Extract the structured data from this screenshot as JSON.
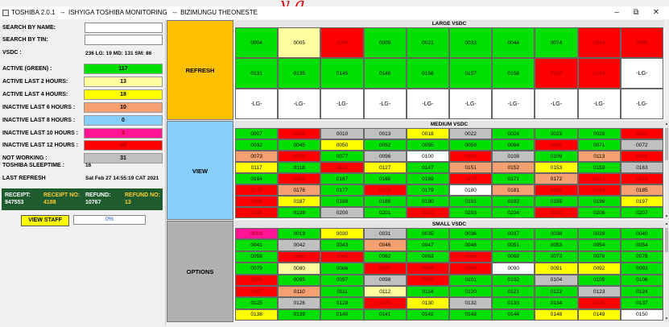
{
  "window": {
    "title": "TOSHIBA 2.0.1   --  ISHYIGA TOSHIBA MONITORING   --  BIZIMUNGU THEONESTE",
    "decoration_text": "y g"
  },
  "left": {
    "search_name_label": "SEARCH BY NAME:",
    "search_tin_label": "SEARCH BY TIN:",
    "vsdc_label": "VSDC :",
    "vsdc_text": "236  LG: 19  MD: 131  SM: 86",
    "stats": [
      {
        "label": "ACTIVE (GREEN) :",
        "value": "117",
        "color": "#00e000"
      },
      {
        "label": "ACTIVE LAST 2 HOURS:",
        "value": "13",
        "color": "#ffffa0"
      },
      {
        "label": "ACTIVE LAST 4 HOURS:",
        "value": "18",
        "color": "#ffff00"
      },
      {
        "label": "INACTIVE LAST 6 HOURS :",
        "value": "10",
        "color": "#f4a070"
      },
      {
        "label": "INACTIVE LAST 8 HOURS :",
        "value": "0",
        "color": "#87cefa"
      },
      {
        "label": "INACTIVE LAST 10 HOURS :",
        "value": "3",
        "color": "#ff1493"
      },
      {
        "label": "INACTIVE LAST 12 HOURS :",
        "value": "40",
        "color": "#ff0000"
      },
      {
        "label": "NOT WORKING :",
        "value": "31",
        "color": "#c0c0c0"
      }
    ],
    "sleeptime_label": "TOSHIBA SLEEPTIME :",
    "sleeptime_value": "16",
    "last_refresh_label": "LAST REFRESH",
    "last_refresh_value": "Sat Feb 27 14:55:19 CAT 2021",
    "receipt_label": "RECEIPT:",
    "receipt_value": "947553",
    "receipt_no_label": "RECEIPT NO:",
    "receipt_no_value": "4188",
    "refund_label": "REFUND:",
    "refund_value": "10767",
    "refund_no_label": "REFUND NO:",
    "refund_no_value": "13",
    "view_staff": "VIEW STAFF",
    "progress": "0%"
  },
  "buttons": {
    "refresh": "REFRESH",
    "view": "VIEW",
    "options": "OPTIONS"
  },
  "colors": {
    "G": "#00e000",
    "LY": "#ffffa0",
    "Y": "#ffff00",
    "S": "#f4a070",
    "R": "#ff0000",
    "P": "#ff1493",
    "GR": "#c0c0c0",
    "W": "#ffffff",
    "GRAY": "#c0c0c0"
  },
  "large": {
    "title": "LARGE VSDC",
    "cells": [
      [
        "0004",
        "G"
      ],
      [
        "0005",
        "LY"
      ],
      [
        "0006",
        "R"
      ],
      [
        "0009",
        "G"
      ],
      [
        "0021",
        "G"
      ],
      [
        "0033",
        "G"
      ],
      [
        "0044",
        "G"
      ],
      [
        "0074",
        "G"
      ],
      [
        "0084",
        "R"
      ],
      [
        "0085",
        "R"
      ],
      [
        "0131",
        "G"
      ],
      [
        "0135",
        "G"
      ],
      [
        "0145",
        "G"
      ],
      [
        "0146",
        "G"
      ],
      [
        "0156",
        "G"
      ],
      [
        "0157",
        "G"
      ],
      [
        "0158",
        "G"
      ],
      [
        "0163",
        "R"
      ],
      [
        "0164",
        "R"
      ],
      [
        "-LG-",
        "W"
      ],
      [
        "-LG-",
        "W"
      ],
      [
        "-LG-",
        "W"
      ],
      [
        "-LG-",
        "W"
      ],
      [
        "-LG-",
        "W"
      ],
      [
        "-LG-",
        "W"
      ],
      [
        "-LG-",
        "W"
      ],
      [
        "-LG-",
        "W"
      ],
      [
        "-LG-",
        "W"
      ],
      [
        "-LG-",
        "W"
      ],
      [
        "-LG-",
        "W"
      ]
    ]
  },
  "medium": {
    "title": "MEDIUM VSDC",
    "cells": [
      [
        "0007",
        "G"
      ],
      [
        "0008",
        "R"
      ],
      [
        "0010",
        "GR"
      ],
      [
        "0013",
        "GR"
      ],
      [
        "0018",
        "Y"
      ],
      [
        "0022",
        "GR"
      ],
      [
        "0024",
        "G"
      ],
      [
        "0025",
        "G"
      ],
      [
        "0026",
        "G"
      ],
      [
        "0027",
        "R"
      ],
      [
        "0032",
        "G"
      ],
      [
        "0045",
        "G"
      ],
      [
        "0050",
        "Y"
      ],
      [
        "0052",
        "G"
      ],
      [
        "0055",
        "G"
      ],
      [
        "0059",
        "G"
      ],
      [
        "0064",
        "G"
      ],
      [
        "0065",
        "R"
      ],
      [
        "0071",
        "G"
      ],
      [
        "0072",
        "GR"
      ],
      [
        "0073",
        "S"
      ],
      [
        "0075",
        "R"
      ],
      [
        "0077",
        "G"
      ],
      [
        "0096",
        "GR"
      ],
      [
        "0100",
        "W"
      ],
      [
        "0103",
        "R"
      ],
      [
        "0108",
        "GR"
      ],
      [
        "0109",
        "G"
      ],
      [
        "0113",
        "S"
      ],
      [
        "0115",
        "R"
      ],
      [
        "0117",
        "Y"
      ],
      [
        "0118",
        "G"
      ],
      [
        "0119",
        "R"
      ],
      [
        "0127",
        "Y"
      ],
      [
        "0147",
        "G"
      ],
      [
        "0151",
        "S"
      ],
      [
        "0152",
        "S"
      ],
      [
        "0153",
        "Y"
      ],
      [
        "0159",
        "G"
      ],
      [
        "0163",
        "GR"
      ],
      [
        "0164",
        "G"
      ],
      [
        "0166",
        "R"
      ],
      [
        "0167",
        "G"
      ],
      [
        "0168",
        "G"
      ],
      [
        "0169",
        "G"
      ],
      [
        "0170",
        "R"
      ],
      [
        "0171",
        "G"
      ],
      [
        "0172",
        "S"
      ],
      [
        "0173",
        "R"
      ],
      [
        "0174",
        "R"
      ],
      [
        "0175",
        "R"
      ],
      [
        "0176",
        "S"
      ],
      [
        "0177",
        "G"
      ],
      [
        "0178",
        "R"
      ],
      [
        "0179",
        "G"
      ],
      [
        "0180",
        "W"
      ],
      [
        "0181",
        "S"
      ],
      [
        "0182",
        "R"
      ],
      [
        "0183",
        "R"
      ],
      [
        "0185",
        "S"
      ],
      [
        "0186",
        "R"
      ],
      [
        "0187",
        "Y"
      ],
      [
        "0188",
        "G"
      ],
      [
        "0189",
        "G"
      ],
      [
        "0190",
        "G"
      ],
      [
        "0191",
        "G"
      ],
      [
        "0192",
        "G"
      ],
      [
        "0195",
        "G"
      ],
      [
        "0196",
        "G"
      ],
      [
        "0197",
        "Y"
      ],
      [
        "0198",
        "R"
      ],
      [
        "0199",
        "G"
      ],
      [
        "0200",
        "GR"
      ],
      [
        "0201",
        "G"
      ],
      [
        "0202",
        "R"
      ],
      [
        "0203",
        "G"
      ],
      [
        "0204",
        "G"
      ],
      [
        "0205",
        "R"
      ],
      [
        "0206",
        "G"
      ],
      [
        "0207",
        "G"
      ]
    ]
  },
  "small": {
    "title": "SMALL VSDC",
    "cells": [
      [
        "0003",
        "P"
      ],
      [
        "0019",
        "G"
      ],
      [
        "0030",
        "Y"
      ],
      [
        "0031",
        "GR"
      ],
      [
        "0035",
        "G"
      ],
      [
        "0036",
        "G"
      ],
      [
        "0037",
        "G"
      ],
      [
        "0038",
        "G"
      ],
      [
        "0039",
        "G"
      ],
      [
        "0040",
        "G"
      ],
      [
        "0041",
        "G"
      ],
      [
        "0042",
        "GR"
      ],
      [
        "0043",
        "G"
      ],
      [
        "0046",
        "S"
      ],
      [
        "0047",
        "G"
      ],
      [
        "0048",
        "G"
      ],
      [
        "0051",
        "G"
      ],
      [
        "0053",
        "G"
      ],
      [
        "0054",
        "G"
      ],
      [
        "0054",
        "G"
      ],
      [
        "0058",
        "G"
      ],
      [
        "0060",
        "R"
      ],
      [
        "0061",
        "R"
      ],
      [
        "0062",
        "G"
      ],
      [
        "0063",
        "G"
      ],
      [
        "0066",
        "R"
      ],
      [
        "0069",
        "G"
      ],
      [
        "0070",
        "G"
      ],
      [
        "0076",
        "G"
      ],
      [
        "0078",
        "G"
      ],
      [
        "0079",
        "G"
      ],
      [
        "0080",
        "LY"
      ],
      [
        "0086",
        "G"
      ],
      [
        "0087",
        "R"
      ],
      [
        "0088",
        "R"
      ],
      [
        "0089",
        "R"
      ],
      [
        "0090",
        "W"
      ],
      [
        "0091",
        "Y"
      ],
      [
        "0092",
        "Y"
      ],
      [
        "0093",
        "G"
      ],
      [
        "0094",
        "R"
      ],
      [
        "0095",
        "G"
      ],
      [
        "0097",
        "G"
      ],
      [
        "0098",
        "GR"
      ],
      [
        "0099",
        "R"
      ],
      [
        "0101",
        "G"
      ],
      [
        "0102",
        "G"
      ],
      [
        "0104",
        "GR"
      ],
      [
        "0105",
        "G"
      ],
      [
        "0106",
        "G"
      ],
      [
        "0107",
        "R"
      ],
      [
        "0110",
        "S"
      ],
      [
        "0111",
        "G"
      ],
      [
        "0112",
        "LY"
      ],
      [
        "0114",
        "G"
      ],
      [
        "0120",
        "G"
      ],
      [
        "0121",
        "G"
      ],
      [
        "0122",
        "G"
      ],
      [
        "0123",
        "GR"
      ],
      [
        "0124",
        "G"
      ],
      [
        "0125",
        "G"
      ],
      [
        "0126",
        "GR"
      ],
      [
        "0128",
        "G"
      ],
      [
        "0129",
        "R"
      ],
      [
        "0130",
        "Y"
      ],
      [
        "0132",
        "GR"
      ],
      [
        "0133",
        "G"
      ],
      [
        "0134",
        "G"
      ],
      [
        "0136",
        "R"
      ],
      [
        "0137",
        "G"
      ],
      [
        "0138",
        "Y"
      ],
      [
        "0139",
        "G"
      ],
      [
        "0140",
        "G"
      ],
      [
        "0141",
        "G"
      ],
      [
        "0142",
        "G"
      ],
      [
        "0143",
        "G"
      ],
      [
        "0144",
        "G"
      ],
      [
        "0148",
        "Y"
      ],
      [
        "0149",
        "Y"
      ],
      [
        "0150",
        "W"
      ]
    ]
  }
}
